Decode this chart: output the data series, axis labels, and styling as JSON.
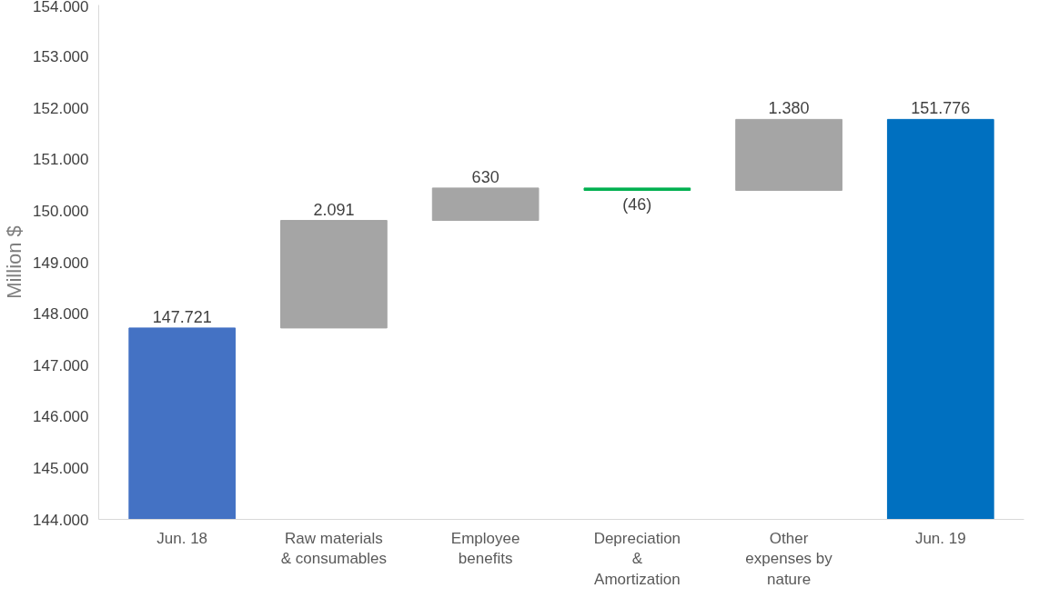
{
  "chart_data": {
    "type": "bar",
    "ylabel": "Million $",
    "categories": [
      "Jun. 18",
      "Raw materials & consumables",
      "Employee benefits",
      "Depreciation & Amortization",
      "Other expenses by nature",
      "Jun. 19"
    ],
    "values": [
      147721,
      2091,
      630,
      -46,
      1380,
      151776
    ],
    "base": [
      null,
      147721,
      149812,
      150442,
      150396,
      null
    ],
    "colors": [
      "#4472c4",
      "#a5a5a5",
      "#a5a5a5",
      "#00b050",
      "#a5a5a5",
      "#0070c0"
    ],
    "value_labels": [
      "147.721",
      "2.091",
      "630",
      "(46)",
      "1.380",
      "151.776"
    ],
    "ylim": [
      144000,
      154000
    ],
    "yticks": [
      {
        "value": 144000,
        "label": "144.000"
      },
      {
        "value": 145000,
        "label": "145.000"
      },
      {
        "value": 146000,
        "label": "146.000"
      },
      {
        "value": 147000,
        "label": "147.000"
      },
      {
        "value": 148000,
        "label": "148.000"
      },
      {
        "value": 149000,
        "label": "149.000"
      },
      {
        "value": 150000,
        "label": "150.000"
      },
      {
        "value": 151000,
        "label": "151.000"
      },
      {
        "value": 152000,
        "label": "152.000"
      },
      {
        "value": 153000,
        "label": "153.000"
      },
      {
        "value": 154000,
        "label": "154.000"
      }
    ],
    "grid": false
  }
}
